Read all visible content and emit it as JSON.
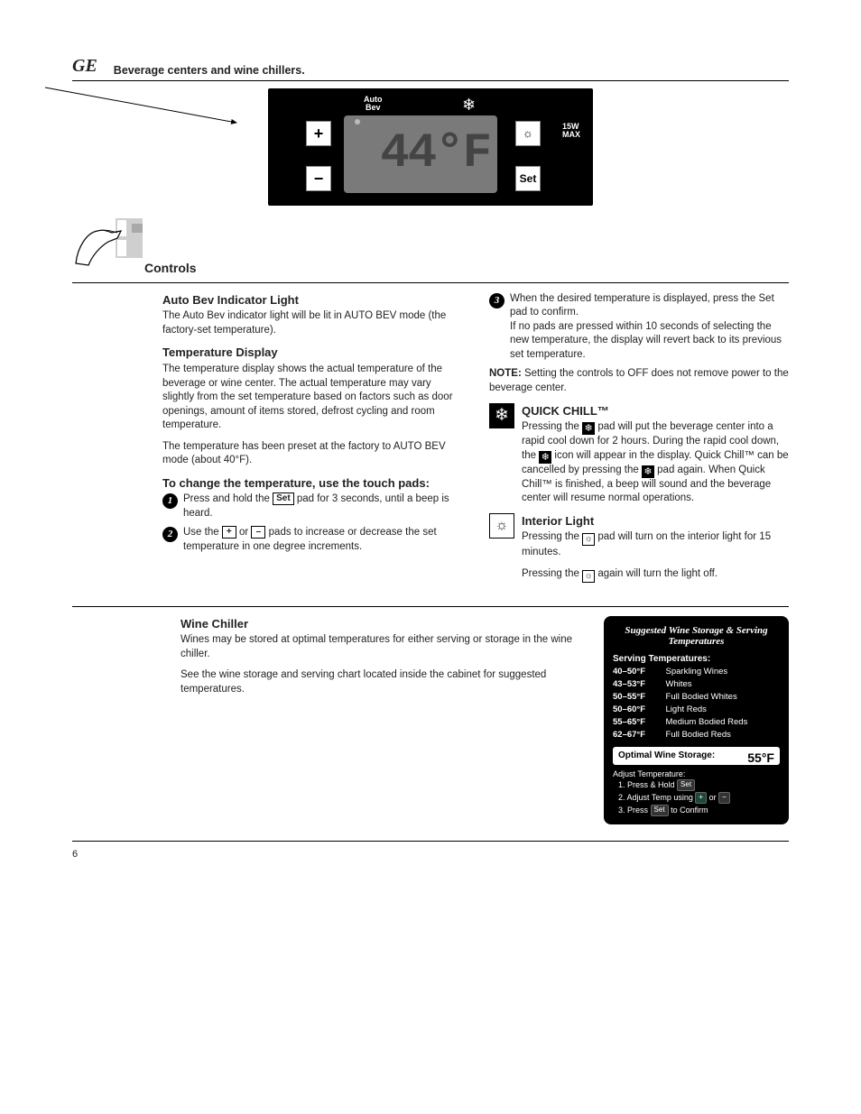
{
  "header": {
    "logo": "GE",
    "title": "Beverage centers and wine chillers."
  },
  "panel": {
    "auto_bev_label": "Auto\nBev",
    "snow_icon": "❄",
    "plus_label": "+",
    "minus_label": "−",
    "light_label": "☼",
    "set_label": "Set",
    "wmax_label": "15W\nMAX",
    "lcd_value": "44°F"
  },
  "controls_section": {
    "heading": "Controls",
    "auto_bev": {
      "title": "Auto Bev Indicator Light",
      "text": "The Auto Bev indicator light will be lit in AUTO BEV mode (the factory-set temperature)."
    },
    "temp_display": {
      "title": "Temperature Display",
      "text1": "The temperature display shows the actual temperature of the beverage or wine center. The actual temperature may vary slightly from the set temperature based on factors such as door openings, amount of items stored, defrost cycling and room temperature.",
      "text2": "The temperature has been preset at the factory to AUTO BEV mode (about 40°F)."
    },
    "temp_change": {
      "title": "To change the temperature, use the touch pads:",
      "step1": "Press and hold the Set pad for 3 seconds, until a beep is heard.",
      "step2": "Use the + or – pads to increase or decrease the set temperature in one degree increments.",
      "step3_pre": "When the desired temperature is displayed, press the Set pad to confirm.",
      "step3_note": "If no pads are pressed within 10 seconds of selecting the new temperature, the display will revert back to its previous set temperature.",
      "note": "NOTE:",
      "note_text": "Setting the controls to OFF does not remove power to the beverage center."
    },
    "quick_chill": {
      "title": "QUICK CHILL™",
      "text": "Pressing the snowflake pad will put the beverage center into a rapid cool down for 2 hours. During the rapid cool down, the snowflake icon will appear in the display. Quick Chill™ can be cancelled by pressing the snowflake pad again. When Quick Chill™ is finished, a beep will sound and the beverage center will resume normal operations."
    },
    "interior_light": {
      "title": "Interior Light",
      "text1": "Pressing the lightbulb pad will turn on the interior light for 15 minutes.",
      "text2": "Pressing the lightbulb again will turn the light off."
    }
  },
  "wine_section": {
    "heading": "Wine Chiller",
    "para1": "Wines may be stored at optimal temperatures for either serving or storage in the wine chiller.",
    "para2": "See the wine storage and serving chart located inside the cabinet for suggested temperatures.",
    "card": {
      "title": "Suggested Wine Storage & Serving Temperatures",
      "serving_header": "Serving Temperatures:",
      "rows": [
        {
          "range": "40–50°F",
          "name": "Sparkling Wines"
        },
        {
          "range": "43–53°F",
          "name": "Whites"
        },
        {
          "range": "50–55°F",
          "name": "Full Bodied Whites"
        },
        {
          "range": "50–60°F",
          "name": "Light Reds"
        },
        {
          "range": "55–65°F",
          "name": "Medium Bodied Reds"
        },
        {
          "range": "62–67°F",
          "name": "Full Bodied Reds"
        }
      ],
      "optimal_label": "Optimal Wine Storage:",
      "optimal_value": "55°F",
      "adjust_title": "Adjust Temperature:",
      "adj_steps": [
        "1. Press & Hold",
        "2. Adjust Temp using",
        "3. Press"
      ],
      "adj_or": "or",
      "adj_confirm": "to Confirm"
    }
  },
  "footer": {
    "page": "6"
  },
  "colors": {
    "black": "#000000",
    "panel_lcd": "#7a7a7a",
    "lcd_text": "#444444"
  }
}
